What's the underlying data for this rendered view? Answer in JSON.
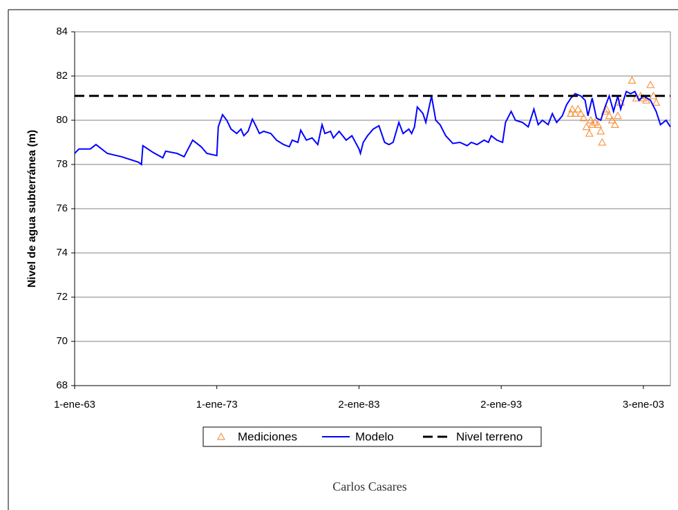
{
  "chart_data": {
    "type": "line",
    "y_label": "Nivel de agua subterránea (m)",
    "caption": "Carlos Casares",
    "xlim": [
      1963,
      2004.9
    ],
    "xticks": [
      {
        "value": 1963,
        "label": "1-ene-63"
      },
      {
        "value": 1973,
        "label": "1-ene-73"
      },
      {
        "value": 1983,
        "label": "2-ene-83"
      },
      {
        "value": 1993,
        "label": "2-ene-93"
      },
      {
        "value": 2003,
        "label": "3-ene-03"
      }
    ],
    "ylim": [
      68,
      84
    ],
    "yticks": [
      68,
      70,
      72,
      74,
      76,
      78,
      80,
      82,
      84
    ],
    "grid": true,
    "legend": "bottom",
    "series": [
      {
        "name": "Mediciones",
        "color": "#f79646",
        "style": "markers",
        "x": [
          1997.9,
          1998.0,
          1998.2,
          1998.4,
          1998.6,
          1998.8,
          1999.0,
          1999.2,
          1999.3,
          1999.4,
          1999.6,
          1999.8,
          2000.0,
          2000.1,
          2000.3,
          2000.4,
          2000.6,
          2000.8,
          2001.0,
          2001.2,
          2001.4,
          2002.2,
          2002.5,
          2002.8,
          2003.0,
          2003.2,
          2003.5,
          2003.7,
          2003.9
        ],
        "values": [
          80.3,
          80.5,
          80.3,
          80.5,
          80.3,
          80.1,
          79.7,
          79.4,
          80.0,
          79.8,
          79.9,
          79.8,
          79.5,
          79.0,
          80.4,
          80.5,
          80.2,
          80.0,
          79.8,
          80.2,
          80.8,
          81.8,
          81.0,
          81.1,
          81.0,
          80.9,
          81.6,
          81.1,
          80.8
        ]
      },
      {
        "name": "Modelo",
        "color": "#0000ff",
        "style": "solid",
        "x": [
          1963.0,
          1963.3,
          1964.1,
          1964.5,
          1965.3,
          1966.3,
          1967.5,
          1967.7,
          1967.8,
          1968.5,
          1969.2,
          1969.4,
          1970.2,
          1970.7,
          1971.3,
          1971.9,
          1972.3,
          1973.0,
          1973.1,
          1973.4,
          1973.7,
          1974.0,
          1974.4,
          1974.7,
          1974.9,
          1975.2,
          1975.5,
          1975.7,
          1976.0,
          1976.3,
          1976.8,
          1977.2,
          1977.7,
          1978.1,
          1978.3,
          1978.7,
          1978.9,
          1979.3,
          1979.7,
          1980.1,
          1980.4,
          1980.6,
          1981.0,
          1981.2,
          1981.6,
          1982.1,
          1982.5,
          1983.0,
          1983.1,
          1983.3,
          1983.6,
          1984.0,
          1984.4,
          1984.8,
          1985.1,
          1985.4,
          1985.8,
          1986.1,
          1986.5,
          1986.7,
          1986.9,
          1987.1,
          1987.5,
          1987.7,
          1987.9,
          1988.1,
          1988.4,
          1988.7,
          1989.1,
          1989.6,
          1990.1,
          1990.6,
          1990.9,
          1991.3,
          1991.8,
          1992.1,
          1992.3,
          1992.7,
          1993.1,
          1993.3,
          1993.7,
          1994.0,
          1994.5,
          1994.9,
          1995.3,
          1995.6,
          1995.9,
          1996.3,
          1996.6,
          1996.9,
          1997.3,
          1997.6,
          1997.9,
          1998.2,
          1998.6,
          1998.9,
          1999.1,
          1999.4,
          1999.7,
          2000.0,
          2000.3,
          2000.6,
          2000.9,
          2001.2,
          2001.4,
          2001.8,
          2002.1,
          2002.4,
          2002.7,
          2003.0,
          2003.5,
          2003.9,
          2004.2,
          2004.6,
          2004.9
        ],
        "values": [
          78.5,
          78.7,
          78.7,
          78.9,
          78.5,
          78.35,
          78.1,
          78.0,
          78.85,
          78.55,
          78.3,
          78.6,
          78.5,
          78.35,
          79.1,
          78.8,
          78.5,
          78.4,
          79.7,
          80.25,
          80.0,
          79.6,
          79.4,
          79.6,
          79.3,
          79.5,
          80.05,
          79.8,
          79.4,
          79.5,
          79.4,
          79.1,
          78.9,
          78.8,
          79.1,
          79.0,
          79.55,
          79.1,
          79.2,
          78.9,
          79.8,
          79.4,
          79.5,
          79.2,
          79.5,
          79.1,
          79.3,
          78.7,
          78.5,
          79.0,
          79.3,
          79.6,
          79.75,
          79.0,
          78.9,
          79.0,
          79.9,
          79.4,
          79.6,
          79.4,
          79.7,
          80.6,
          80.3,
          79.9,
          80.5,
          81.1,
          80.0,
          79.8,
          79.3,
          78.95,
          79.0,
          78.85,
          79.0,
          78.9,
          79.1,
          79.0,
          79.3,
          79.1,
          79.0,
          79.9,
          80.4,
          80.0,
          79.9,
          79.7,
          80.5,
          79.8,
          80.0,
          79.8,
          80.3,
          79.9,
          80.2,
          80.7,
          81.0,
          81.2,
          81.1,
          80.9,
          80.2,
          81.0,
          80.1,
          80.0,
          80.6,
          81.1,
          80.4,
          81.1,
          80.5,
          81.3,
          81.2,
          81.3,
          80.9,
          81.1,
          80.9,
          80.4,
          79.8,
          80.0,
          79.7
        ]
      },
      {
        "name": "Nivel terreno",
        "color": "#000000",
        "style": "dashed",
        "x": [
          1963,
          2004.9
        ],
        "values": [
          81.1,
          81.1
        ]
      }
    ]
  }
}
